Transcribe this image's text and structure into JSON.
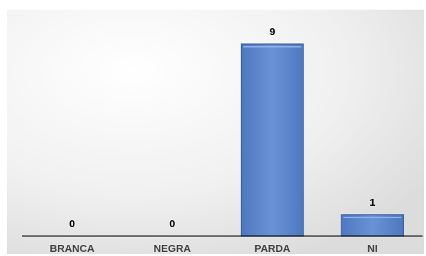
{
  "chart_data": {
    "type": "bar",
    "categories": [
      "BRANCA",
      "NEGRA",
      "PARDA",
      "NI"
    ],
    "values": [
      0,
      0,
      9,
      1
    ],
    "data_labels": [
      "0",
      "0",
      "9",
      "1"
    ],
    "title": "",
    "xlabel": "",
    "ylabel": "",
    "ylim": [
      0,
      9
    ],
    "grid": false,
    "legend": "none",
    "bar_color": "#5b84c8",
    "bar_edge_color": "#3f64a3"
  }
}
